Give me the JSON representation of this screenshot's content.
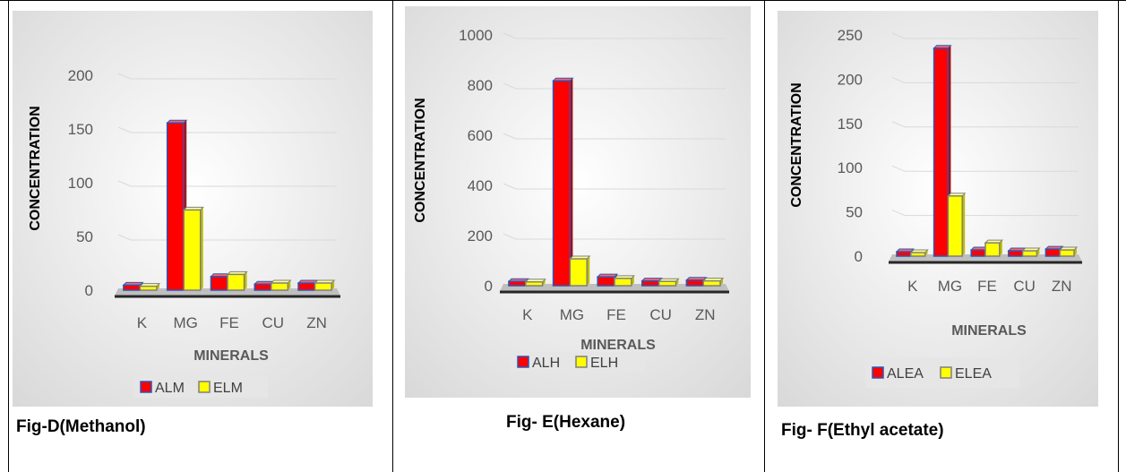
{
  "chart_data": [
    {
      "type": "bar",
      "caption": "Fig-D(Methanol)",
      "xlabel": "MINERALS",
      "ylabel": "CONCENTRATION",
      "categories": [
        "K",
        "MG",
        "FE",
        "CU",
        "ZN"
      ],
      "ylim": [
        0,
        200
      ],
      "yticks": [
        "0",
        "50",
        "100",
        "150",
        "200"
      ],
      "series": [
        {
          "name": "ALM",
          "values": [
            3,
            154,
            11,
            4,
            5
          ]
        },
        {
          "name": "ELM",
          "values": [
            2,
            73,
            13,
            5,
            5
          ]
        }
      ],
      "grid": true,
      "legend": "bottom"
    },
    {
      "type": "bar",
      "caption": "Fig- E(Hexane)",
      "xlabel": "MINERALS",
      "ylabel": "CONCENTRATION",
      "categories": [
        "K",
        "MG",
        "FE",
        "CU",
        "ZN"
      ],
      "ylim": [
        0,
        1000
      ],
      "yticks": [
        "0",
        "200",
        "400",
        "600",
        "800",
        "1000"
      ],
      "series": [
        {
          "name": "ALH",
          "values": [
            10,
            810,
            28,
            12,
            15
          ]
        },
        {
          "name": "ELH",
          "values": [
            8,
            100,
            22,
            10,
            12
          ]
        }
      ],
      "grid": true,
      "legend": "bottom"
    },
    {
      "type": "bar",
      "caption": "Fig- F(Ethyl acetate)",
      "xlabel": "MINERALS",
      "ylabel": "CONCENTRATION",
      "categories": [
        "K",
        "MG",
        "FE",
        "CU",
        "ZN"
      ],
      "ylim": [
        0,
        250
      ],
      "yticks": [
        "0",
        "50",
        "100",
        "150",
        "200",
        "250"
      ],
      "series": [
        {
          "name": "ALEA",
          "values": [
            3,
            233,
            5,
            4,
            6
          ]
        },
        {
          "name": "ELEA",
          "values": [
            2,
            66,
            13,
            4,
            5
          ]
        }
      ],
      "grid": true,
      "legend": "bottom"
    }
  ],
  "colors": {
    "series_a_fill": "#ff0000",
    "series_a_edge": "#2a57b8",
    "series_b_fill": "#ffff00",
    "series_b_edge": "#7f7f7f",
    "panel_bg": "#f2f2f2",
    "grid": "#d9d9d9",
    "floor": "#a6a6a6"
  }
}
